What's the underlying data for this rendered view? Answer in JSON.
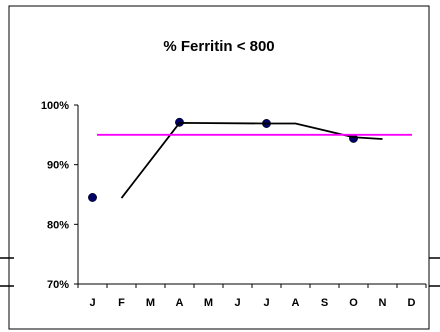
{
  "chart_data": {
    "type": "line",
    "title": "% Ferritin < 800",
    "xlabel": "",
    "ylabel": "",
    "categories": [
      "J",
      "F",
      "M",
      "A",
      "M",
      "J",
      "J",
      "A",
      "S",
      "O",
      "N",
      "D"
    ],
    "ylim": [
      70,
      100
    ],
    "yticks": [
      "70%",
      "80%",
      "90%",
      "100%"
    ],
    "grid": false,
    "legend": "none",
    "series": [
      {
        "kind": "points",
        "color": "#000066",
        "values": [
          84.5,
          null,
          null,
          97.1,
          null,
          null,
          96.9,
          null,
          null,
          94.4,
          null,
          null
        ]
      },
      {
        "kind": "line",
        "color": "#000000",
        "values": [
          null,
          84.4,
          null,
          97.0,
          null,
          null,
          96.9,
          96.9,
          null,
          94.6,
          94.3,
          null
        ]
      },
      {
        "kind": "reference",
        "color": "#ff00ff",
        "values": [
          95,
          95,
          95,
          95,
          95,
          95,
          95,
          95,
          95,
          95,
          95,
          95
        ]
      }
    ]
  }
}
